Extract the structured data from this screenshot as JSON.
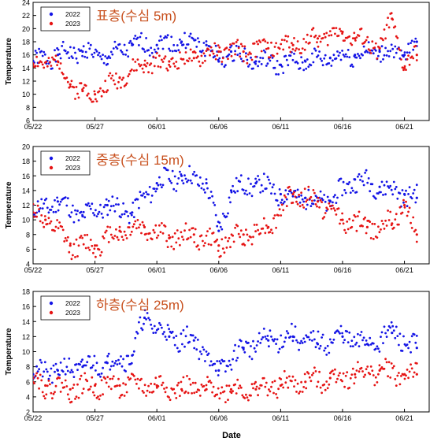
{
  "xlabel": "Date",
  "colors": {
    "2022": "#1414e6",
    "2023": "#e61414",
    "title": "#c8501e"
  },
  "chart_data": [
    {
      "type": "scatter",
      "title": "표층(수심 5m)",
      "ylabel": "Temperature",
      "ylim": [
        6,
        24
      ],
      "yticks": [
        6,
        8,
        10,
        12,
        14,
        16,
        18,
        20,
        22,
        24
      ],
      "xlim": [
        "05/22",
        "06/23"
      ],
      "xticks": [
        "05/22",
        "05/27",
        "06/01",
        "06/06",
        "06/11",
        "06/16",
        "06/21"
      ],
      "legend": "top-left",
      "series": [
        {
          "name": "2022",
          "x": [
            "05/22",
            "05/24",
            "05/26",
            "05/28",
            "05/30",
            "06/01",
            "06/03",
            "06/05",
            "06/06",
            "06/07",
            "06/09",
            "06/11",
            "06/13",
            "06/15",
            "06/17",
            "06/19",
            "06/21",
            "06/22"
          ],
          "y": [
            15.0,
            16.0,
            16.5,
            15.5,
            17.5,
            17.5,
            18.0,
            17.5,
            15.0,
            16.5,
            15.0,
            14.5,
            15.0,
            15.5,
            16.0,
            16.5,
            16.0,
            18.0
          ]
        },
        {
          "name": "2023",
          "x": [
            "05/22",
            "05/24",
            "05/25",
            "05/26",
            "05/27",
            "05/29",
            "05/31",
            "06/02",
            "06/04",
            "06/06",
            "06/08",
            "06/10",
            "06/12",
            "06/14",
            "06/16",
            "06/17",
            "06/19",
            "06/20",
            "06/21",
            "06/22"
          ],
          "y": [
            14.5,
            15.0,
            11.5,
            10.5,
            10.0,
            12.5,
            14.5,
            15.0,
            15.5,
            16.5,
            16.5,
            17.0,
            17.5,
            18.5,
            19.5,
            18.5,
            17.0,
            21.5,
            14.0,
            16.0
          ]
        }
      ]
    },
    {
      "type": "scatter",
      "title": "중층(수심 15m)",
      "ylabel": "Temperature",
      "ylim": [
        4,
        20
      ],
      "yticks": [
        4,
        6,
        8,
        10,
        12,
        14,
        16,
        18,
        20
      ],
      "xlim": [
        "05/22",
        "06/23"
      ],
      "xticks": [
        "05/22",
        "05/27",
        "06/01",
        "06/06",
        "06/11",
        "06/16",
        "06/21"
      ],
      "legend": "top-left",
      "series": [
        {
          "name": "2022",
          "x": [
            "05/22",
            "05/24",
            "05/26",
            "05/28",
            "05/30",
            "06/01",
            "06/03",
            "06/05",
            "06/06",
            "06/07",
            "06/09",
            "06/11",
            "06/13",
            "06/15",
            "06/17",
            "06/19",
            "06/21",
            "06/22"
          ],
          "y": [
            11.0,
            12.5,
            10.5,
            12.0,
            11.0,
            15.0,
            16.0,
            15.0,
            8.5,
            14.0,
            15.0,
            13.5,
            13.0,
            12.5,
            15.5,
            14.5,
            13.5,
            13.0
          ]
        },
        {
          "name": "2023",
          "x": [
            "05/22",
            "05/23",
            "05/25",
            "05/27",
            "05/29",
            "05/31",
            "06/02",
            "06/04",
            "06/06",
            "06/08",
            "06/10",
            "06/12",
            "06/14",
            "06/16",
            "06/18",
            "06/20",
            "06/21",
            "06/22"
          ],
          "y": [
            11.0,
            10.0,
            6.5,
            6.5,
            8.5,
            9.0,
            7.5,
            8.0,
            6.5,
            8.0,
            9.0,
            13.5,
            12.5,
            10.0,
            9.0,
            9.5,
            12.0,
            8.0
          ]
        }
      ]
    },
    {
      "type": "scatter",
      "title": "하층(수심 25m)",
      "ylabel": "Temperature",
      "ylim": [
        2,
        18
      ],
      "yticks": [
        2,
        4,
        6,
        8,
        10,
        12,
        14,
        16,
        18
      ],
      "xlim": [
        "05/22",
        "06/23"
      ],
      "xticks": [
        "05/22",
        "05/27",
        "06/01",
        "06/06",
        "06/11",
        "06/16",
        "06/21"
      ],
      "legend": "top-left",
      "series": [
        {
          "name": "2022",
          "x": [
            "05/22",
            "05/24",
            "05/26",
            "05/28",
            "05/30",
            "05/31",
            "06/02",
            "06/04",
            "06/06",
            "06/08",
            "06/10",
            "06/12",
            "06/14",
            "06/16",
            "06/18",
            "06/20",
            "06/22"
          ],
          "y": [
            7.0,
            7.5,
            8.0,
            8.5,
            9.5,
            14.5,
            12.0,
            11.5,
            7.5,
            10.5,
            11.5,
            12.0,
            11.0,
            12.0,
            11.0,
            12.5,
            10.5
          ]
        },
        {
          "name": "2023",
          "x": [
            "05/22",
            "05/23",
            "05/25",
            "05/27",
            "05/29",
            "06/01",
            "06/03",
            "06/05",
            "06/07",
            "06/09",
            "06/11",
            "06/13",
            "06/15",
            "06/17",
            "06/19",
            "06/21",
            "06/22"
          ],
          "y": [
            6.5,
            5.5,
            5.0,
            5.5,
            5.5,
            5.5,
            5.0,
            5.0,
            5.0,
            5.0,
            5.5,
            6.0,
            6.5,
            7.0,
            7.5,
            7.0,
            7.0
          ]
        }
      ]
    }
  ]
}
